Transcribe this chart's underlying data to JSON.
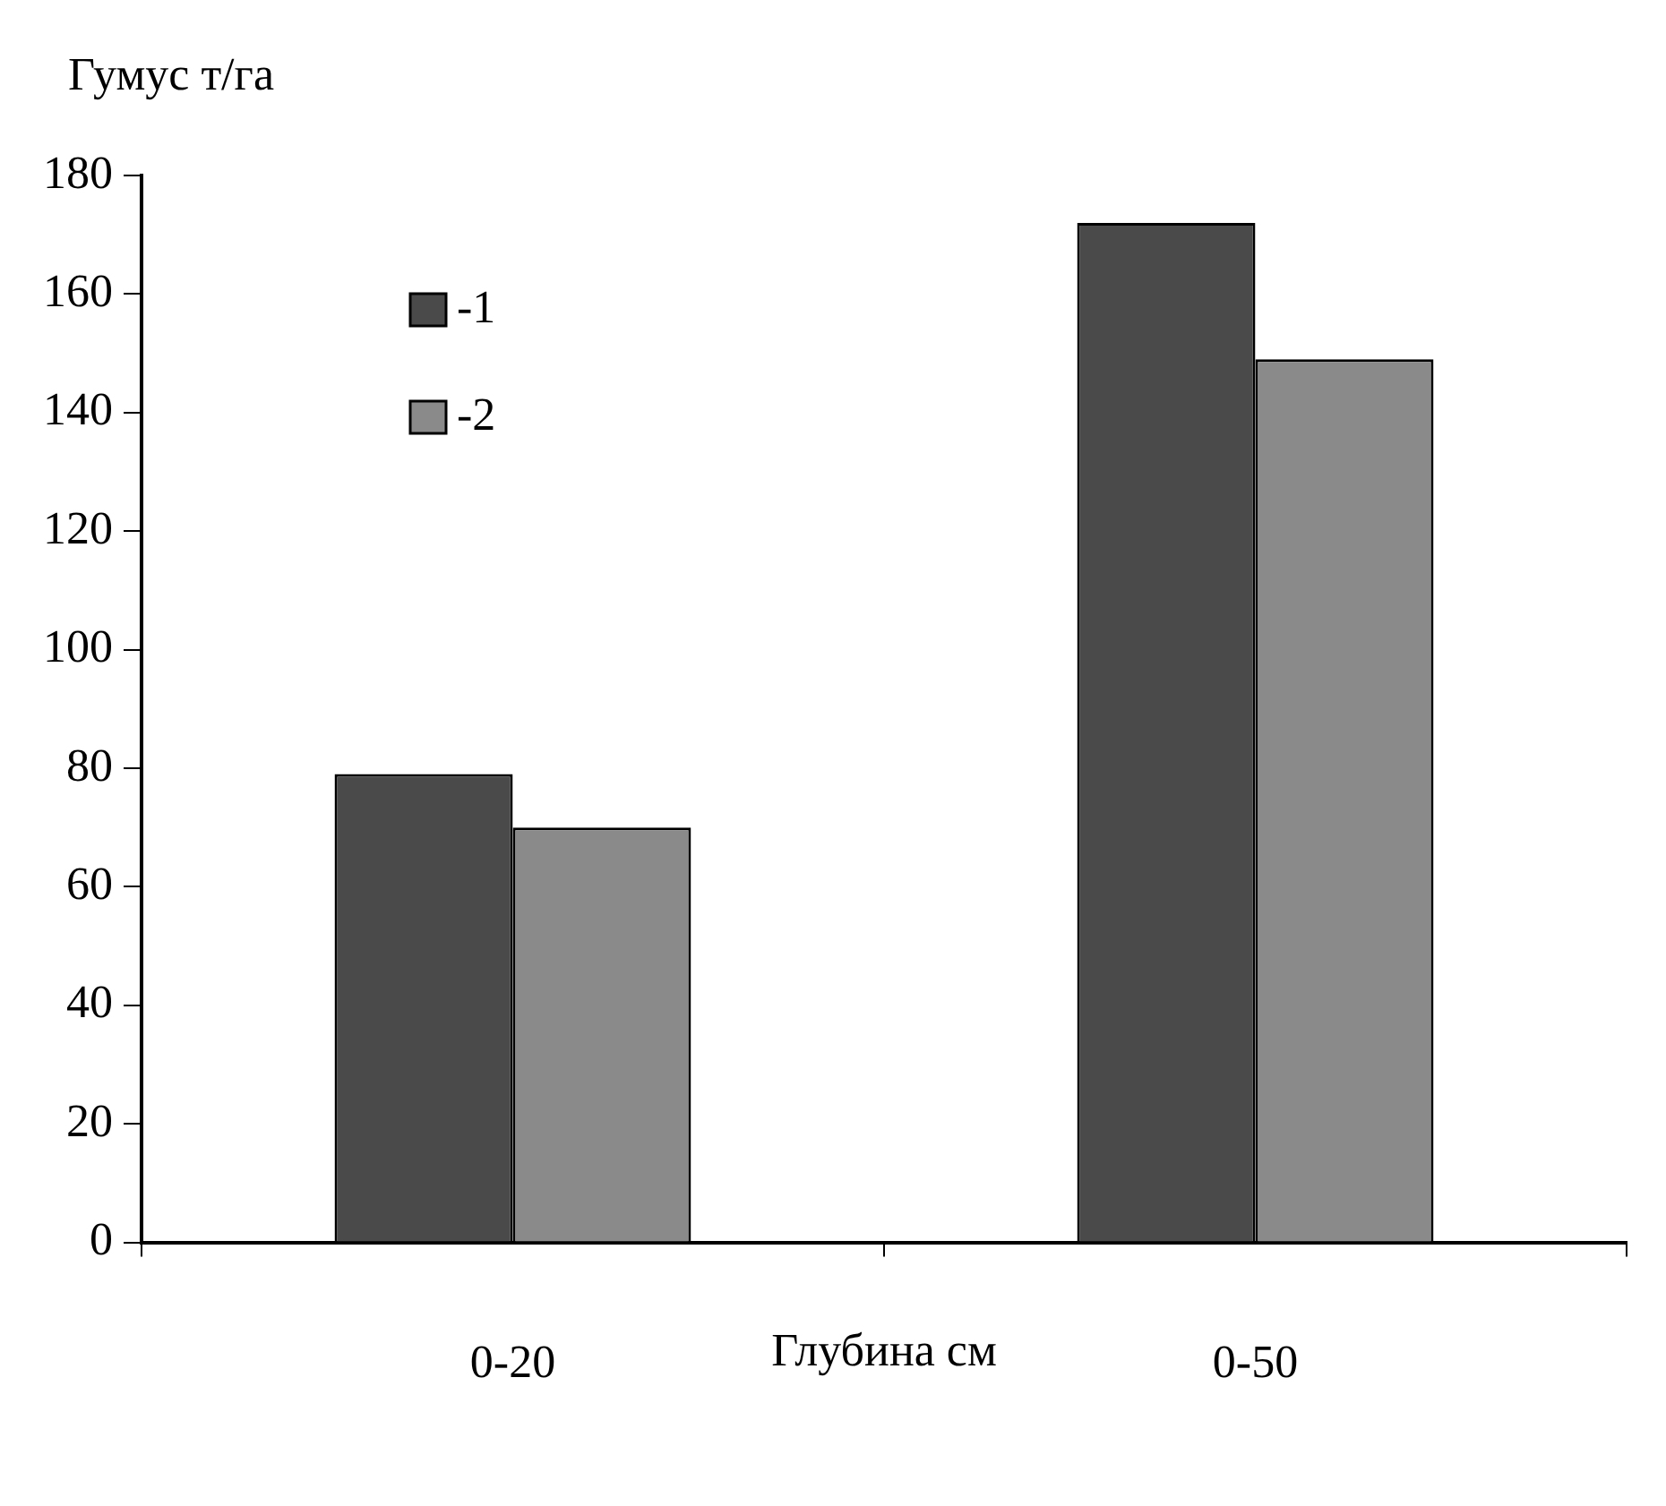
{
  "chart_data": {
    "type": "bar",
    "ylabel": "Гумус т/га",
    "xlabel": "Глубина см",
    "categories": [
      "0-20",
      "0-50"
    ],
    "series": [
      {
        "name": "-1",
        "color": "#4a4a4a",
        "values": [
          79,
          172
        ]
      },
      {
        "name": "-2",
        "color": "#8a8a8a",
        "values": [
          70,
          149
        ]
      }
    ],
    "ylim": [
      0,
      180
    ],
    "yticks": [
      0,
      20,
      40,
      60,
      80,
      100,
      120,
      140,
      160,
      180
    ],
    "grid": false,
    "legend": "top left"
  }
}
